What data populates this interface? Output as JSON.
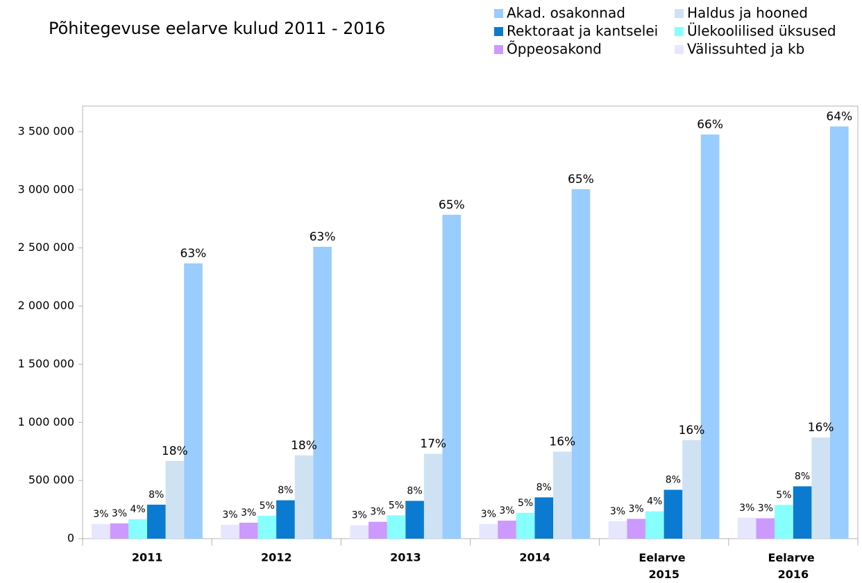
{
  "chart_data": {
    "type": "bar",
    "title": "Põhitegevuse eelarve kulud 2011 - 2016",
    "categories": [
      "2011",
      "2012",
      "2013",
      "2014",
      "Eelarve 2015",
      "Eelarve 2016"
    ],
    "series": [
      {
        "name": "Akad. osakonnad",
        "color": "#99ccff",
        "values": [
          2367000,
          2510000,
          2785000,
          3005000,
          3475000,
          3545000
        ],
        "share_labels": [
          "63%",
          "63%",
          "65%",
          "65%",
          "66%",
          "64%"
        ]
      },
      {
        "name": "Haldus ja hooned",
        "color": "#cfe2f3",
        "values": [
          668000,
          716000,
          730000,
          748000,
          848000,
          870000
        ],
        "share_labels": [
          "18%",
          "18%",
          "17%",
          "16%",
          "16%",
          "16%"
        ]
      },
      {
        "name": "Rektoraat ja kantselei",
        "color": "#0a7bd0",
        "values": [
          292000,
          330000,
          325000,
          355000,
          420000,
          450000
        ],
        "share_labels": [
          "8%",
          "8%",
          "8%",
          "8%",
          "8%",
          "8%"
        ]
      },
      {
        "name": "Ülekoolilised üksused",
        "color": "#88ffff",
        "values": [
          167000,
          197000,
          200000,
          222000,
          235000,
          290000
        ],
        "share_labels": [
          "4%",
          "5%",
          "5%",
          "5%",
          "4%",
          "5%"
        ]
      },
      {
        "name": "Õppeosakond",
        "color": "#cc99ff",
        "values": [
          131000,
          137000,
          145000,
          155000,
          170000,
          175000
        ],
        "share_labels": [
          "3%",
          "3%",
          "3%",
          "3%",
          "3%",
          "3%"
        ]
      },
      {
        "name": "Välissuhted ja kb",
        "color": "#e6e6ff",
        "values": [
          125000,
          119000,
          115000,
          125000,
          150000,
          180000
        ],
        "share_labels": [
          "3%",
          "3%",
          "3%",
          "3%",
          "3%",
          "3%"
        ]
      }
    ],
    "ylim": [
      0,
      3720000
    ],
    "yticks": [
      {
        "value": 0,
        "label": "0"
      },
      {
        "value": 500000,
        "label": "500 000"
      },
      {
        "value": 1000000,
        "label": "1 000 000"
      },
      {
        "value": 1500000,
        "label": "1 500 000"
      },
      {
        "value": 2000000,
        "label": "2 000 000"
      },
      {
        "value": 2500000,
        "label": "2 500 000"
      },
      {
        "value": 3000000,
        "label": "3 000 000"
      },
      {
        "value": 3500000,
        "label": "3 500 000"
      }
    ],
    "grid": false,
    "legend": "top-right"
  }
}
